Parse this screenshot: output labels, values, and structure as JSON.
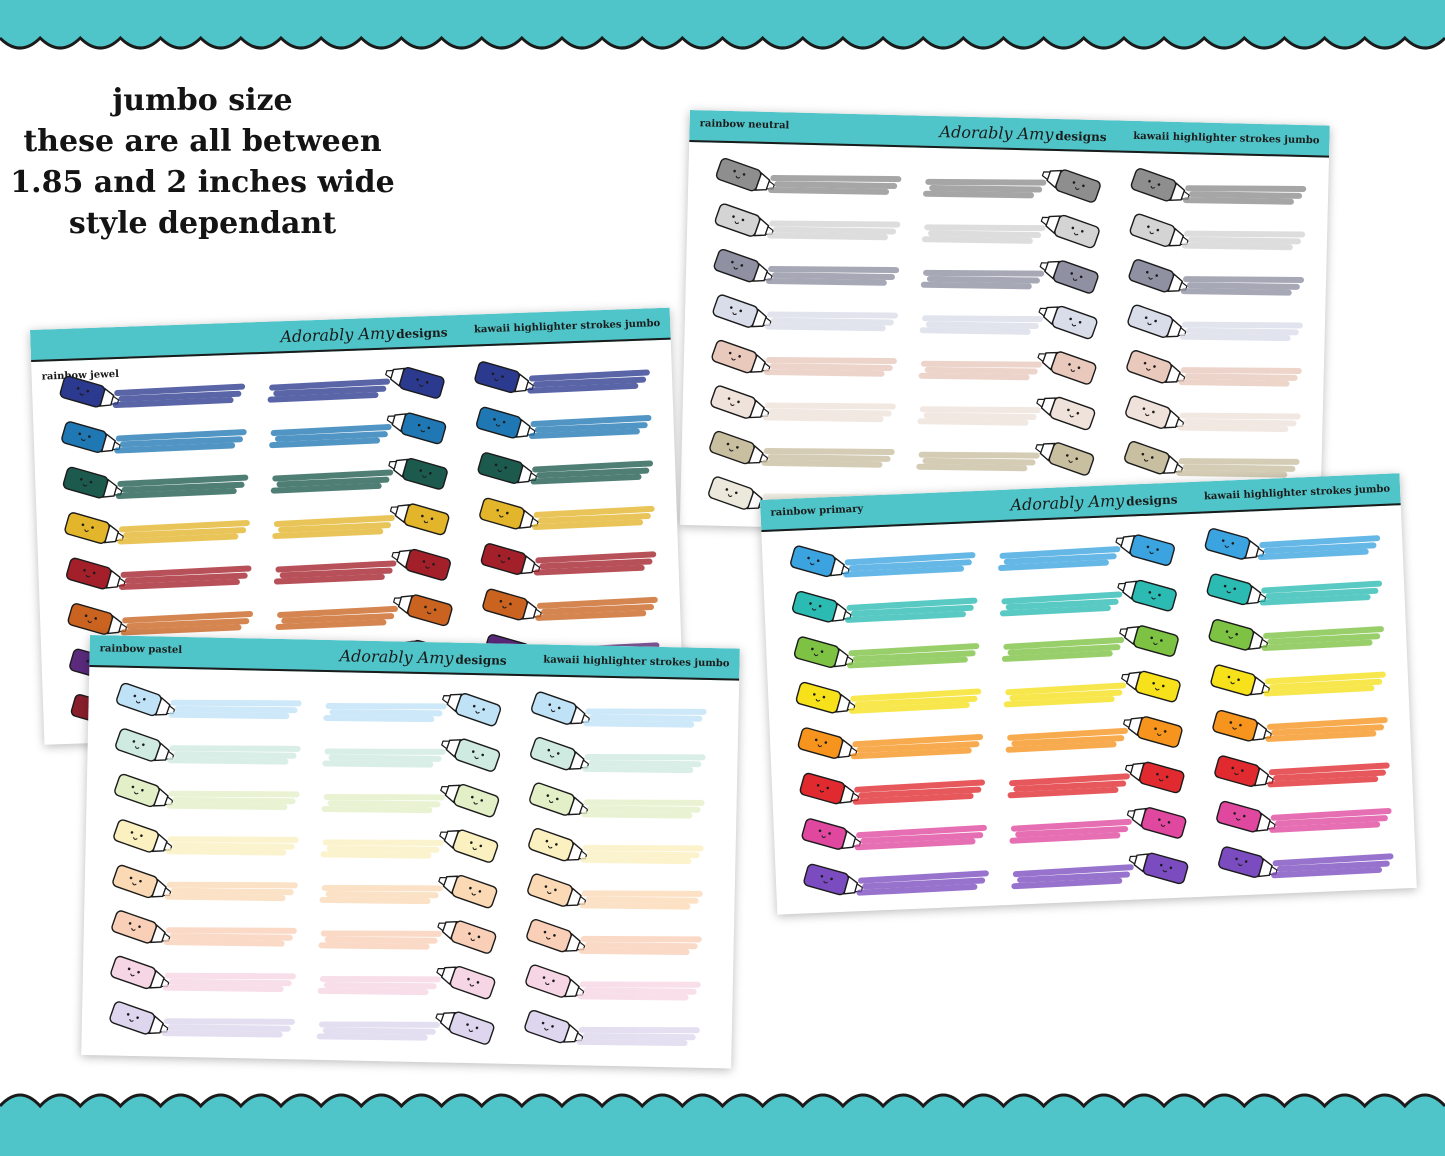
{
  "headline": {
    "lines": [
      "jumbo size",
      "these are all between",
      "1.85 and 2 inches wide",
      "style dependant"
    ]
  },
  "colors": {
    "scallop": "#4fc5c9",
    "header_bar": "#4fc5c9",
    "outline": "#1b1b1b"
  },
  "sheets": {
    "neutral": {
      "name": "rainbow neutral",
      "brand_script": "Adorably Amy",
      "brand_word": "designs",
      "product": "kawaii highlighter strokes jumbo",
      "colors": [
        "#8e8e8e",
        "#d4d4d4",
        "#8f90a2",
        "#d9dde9",
        "#e9c9bc",
        "#efe2db",
        "#c8bea0",
        "#ece8dc"
      ]
    },
    "jewel": {
      "name": "rainbow jewel",
      "brand_script": "Adorably Amy",
      "brand_word": "designs",
      "product": "kawaii highlighter strokes jumbo",
      "colors": [
        "#2b3a8f",
        "#1f78b4",
        "#1d5a4e",
        "#e3b52b",
        "#a3202a",
        "#c9631f",
        "#5b2a7c",
        "#8a1f2c"
      ]
    },
    "primary": {
      "name": "rainbow primary",
      "brand_script": "Adorably Amy",
      "brand_word": "designs",
      "product": "kawaii highlighter strokes jumbo",
      "colors": [
        "#3aa3e0",
        "#2bbbb3",
        "#7dc242",
        "#f6e11b",
        "#f7941d",
        "#e02a2f",
        "#e0479e",
        "#7b4cbf"
      ]
    },
    "pastel": {
      "name": "rainbow pastel",
      "brand_script": "Adorably Amy",
      "brand_word": "designs",
      "product": "kawaii highlighter strokes jumbo",
      "colors": [
        "#bfe2f7",
        "#cfeae1",
        "#e3f0c7",
        "#fbf0bf",
        "#fbd9b5",
        "#f9cfb7",
        "#f6d6e4",
        "#ddd6ee"
      ]
    }
  }
}
